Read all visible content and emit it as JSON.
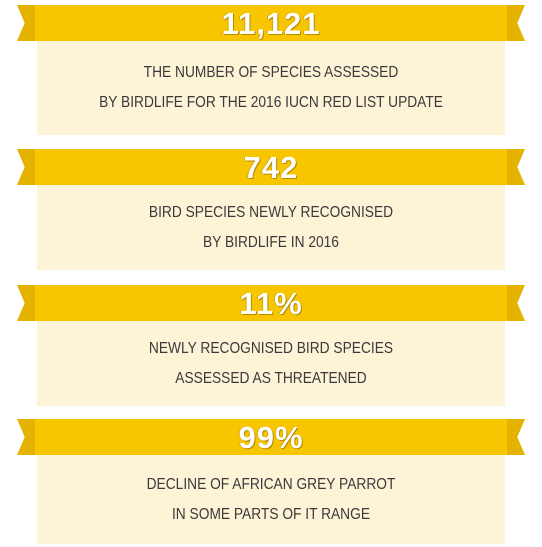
{
  "stats": [
    {
      "value": "11,121",
      "lines": [
        "THE NUMBER OF SPECIES ASSESSED",
        "BY BIRDLIFE FOR THE 2016 IUCN RED LIST UPDATE"
      ]
    },
    {
      "value": "742",
      "lines": [
        "BIRD SPECIES NEWLY RECOGNISED",
        "BY BIRDLIFE IN 2016"
      ]
    },
    {
      "value": "11%",
      "lines": [
        "NEWLY RECOGNISED BIRD SPECIES",
        "ASSESSED AS THREATENED"
      ]
    },
    {
      "value": "99%",
      "lines": [
        "DECLINE OF AFRICAN GREY PARROT",
        "IN SOME PARTS OF IT RANGE"
      ]
    }
  ]
}
